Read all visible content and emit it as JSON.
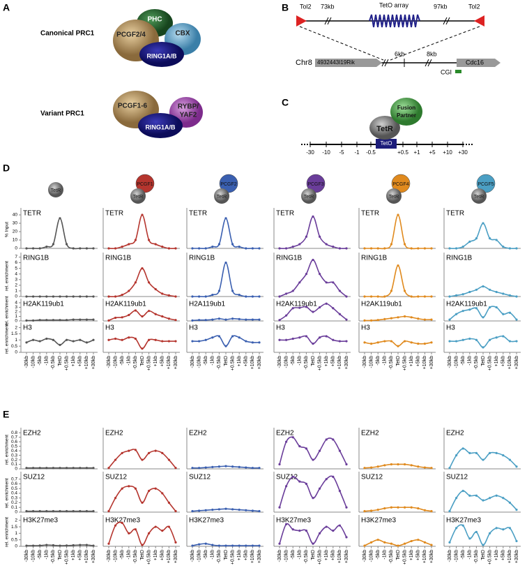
{
  "panel_labels": [
    "A",
    "B",
    "C",
    "D",
    "E"
  ],
  "panel_a": {
    "canonical": "Canonical PRC1",
    "variant": "Variant PRC1",
    "pcgf24": "PCGF2/4",
    "phc": "PHC",
    "cbx": "CBX",
    "ring1": "RING1A/B",
    "pcgf16": "PCGF1-6",
    "rybp1": "RYBP/",
    "rybp2": "YAF2",
    "ring2": "RING1A/B"
  },
  "panel_b": {
    "tol2_left": "Tol2",
    "kb73": "73kb",
    "teto_array": "TetO array",
    "kb97": "97kb",
    "tol2_right": "Tol2",
    "chr8": "Chr8",
    "gene_left": "4932443I19Rik",
    "kb6": "6kb",
    "kb8": "8kb",
    "gene_right": "Cdc16",
    "cgi": "CGI"
  },
  "panel_c": {
    "fusion1": "Fusion",
    "fusion2": "Partner",
    "tetr": "TetR",
    "teto": "TetO",
    "ticks": [
      "-30",
      "-10",
      "-5",
      "-1",
      "-0.5",
      "+0.5",
      "+1",
      "+5",
      "+10",
      "+30"
    ]
  },
  "panel_d": {
    "constructs": [
      {
        "tetr": "TetR"
      },
      {
        "tetr": "TetR",
        "fusion": "PCGF1"
      },
      {
        "tetr": "TetR",
        "fusion": "PCGF2"
      },
      {
        "tetr": "TetR",
        "fusion": "PCGF3"
      },
      {
        "tetr": "TetR",
        "fusion": "PCGF4"
      },
      {
        "tetr": "TetR",
        "fusion": "PCGF5"
      }
    ]
  },
  "chart_data": [
    {
      "type": "line",
      "title": "TETR",
      "color": "#555555",
      "ylim": [
        0,
        45
      ],
      "y_label": "% Input",
      "yticks": [
        0,
        10,
        20,
        30,
        40
      ],
      "values": [
        0,
        0,
        0,
        2,
        5,
        36,
        5,
        0,
        0,
        0,
        0
      ]
    },
    {
      "type": "line",
      "title": "TETR",
      "color": "#b5352e",
      "ylim": [
        0,
        45
      ],
      "values": [
        0,
        0,
        2,
        5,
        10,
        40,
        10,
        5,
        2,
        0,
        0
      ]
    },
    {
      "type": "line",
      "title": "TETR",
      "color": "#3a5fb0",
      "ylim": [
        0,
        45
      ],
      "values": [
        0,
        0,
        0,
        2,
        5,
        36,
        5,
        2,
        0,
        0,
        0
      ]
    },
    {
      "type": "line",
      "title": "TETR",
      "color": "#6a3d9a",
      "ylim": [
        0,
        45
      ],
      "values": [
        0,
        0,
        2,
        5,
        14,
        38,
        14,
        5,
        2,
        0,
        0
      ]
    },
    {
      "type": "line",
      "title": "TETR",
      "color": "#e08a1e",
      "ylim": [
        0,
        45
      ],
      "values": [
        0,
        0,
        0,
        0,
        5,
        40,
        5,
        0,
        0,
        0,
        0
      ]
    },
    {
      "type": "line",
      "title": "TETR",
      "color": "#4b9fc4",
      "ylim": [
        0,
        45
      ],
      "values": [
        0,
        0,
        2,
        8,
        12,
        30,
        12,
        10,
        2,
        0,
        0
      ]
    },
    {
      "type": "line",
      "title": "RING1B",
      "color": "#555555",
      "ylim": [
        0,
        7.3
      ],
      "y_label": "rel. enrichment",
      "yticks": [
        0,
        1,
        2,
        3,
        4,
        5,
        6,
        7
      ],
      "values": [
        0,
        0,
        0,
        0,
        0,
        0,
        0,
        0,
        0,
        0,
        0
      ]
    },
    {
      "type": "line",
      "title": "RING1B",
      "color": "#b5352e",
      "ylim": [
        0,
        7.3
      ],
      "values": [
        0,
        0,
        0.3,
        1,
        2.5,
        5,
        2.5,
        1.3,
        0.5,
        0.2,
        0
      ]
    },
    {
      "type": "line",
      "title": "RING1B",
      "color": "#3a5fb0",
      "ylim": [
        0,
        7.3
      ],
      "values": [
        0,
        0,
        0,
        0.3,
        1,
        6,
        1,
        0.3,
        0,
        0,
        0
      ]
    },
    {
      "type": "line",
      "title": "RING1B",
      "color": "#6a3d9a",
      "ylim": [
        0,
        7.3
      ],
      "values": [
        0,
        0.5,
        1,
        2.5,
        4,
        6.5,
        4,
        2.5,
        2.5,
        1,
        0
      ]
    },
    {
      "type": "line",
      "title": "RING1B",
      "color": "#e08a1e",
      "ylim": [
        0,
        7.3
      ],
      "values": [
        0,
        0,
        0,
        0,
        1,
        5.5,
        1,
        0,
        0,
        0,
        0
      ]
    },
    {
      "type": "line",
      "title": "RING1B",
      "color": "#4b9fc4",
      "ylim": [
        0,
        7.3
      ],
      "values": [
        0,
        0.2,
        0.4,
        0.8,
        1.2,
        1.8,
        1.2,
        0.8,
        0.5,
        0.2,
        0
      ]
    },
    {
      "type": "line",
      "title": "H2AK119ub1",
      "color": "#555555",
      "ylim": [
        0,
        4.3
      ],
      "y_label": "rel. enrichment",
      "yticks": [
        0,
        1,
        2,
        3,
        4
      ],
      "values": [
        0.1,
        0.1,
        0.2,
        0.2,
        0.2,
        0.2,
        0.2,
        0.3,
        0.3,
        0.3,
        0.3
      ]
    },
    {
      "type": "line",
      "title": "H2AK119ub1",
      "color": "#b5352e",
      "ylim": [
        0,
        4.3
      ],
      "values": [
        0.1,
        0.7,
        0.8,
        1.3,
        2.3,
        1.0,
        2.2,
        1.5,
        1.0,
        0.5,
        0.2
      ]
    },
    {
      "type": "line",
      "title": "H2A119ub1",
      "color": "#3a5fb0",
      "ylim": [
        0,
        4.3
      ],
      "values": [
        0.1,
        0.2,
        0.2,
        0.3,
        0.5,
        0.3,
        0.5,
        0.4,
        0.3,
        0.3,
        0.3
      ]
    },
    {
      "type": "line",
      "title": "H2AK119ub1",
      "color": "#6a3d9a",
      "ylim": [
        0,
        4.3
      ],
      "values": [
        0.2,
        1.2,
        2.8,
        2.9,
        3.1,
        2.0,
        3.0,
        3.8,
        2.8,
        1.5,
        0.3
      ]
    },
    {
      "type": "line",
      "title": "H2AK119ub1",
      "color": "#e08a1e",
      "ylim": [
        0,
        4.3
      ],
      "values": [
        0.1,
        0.1,
        0.2,
        0.4,
        0.6,
        0.8,
        1.0,
        0.8,
        0.5,
        0.3,
        0.3
      ]
    },
    {
      "type": "line",
      "title": "H2AK119ub1",
      "color": "#4b9fc4",
      "ylim": [
        0,
        4.3
      ],
      "values": [
        0.3,
        1.5,
        2.2,
        2.5,
        2.8,
        0.8,
        3.0,
        3.0,
        1.5,
        1.8,
        0.3
      ]
    },
    {
      "type": "line",
      "title": "H3",
      "color": "#555555",
      "ylim": [
        0,
        2.2
      ],
      "y_label": "rel. enrichment",
      "yticks": [
        0,
        0.5,
        1,
        1.5,
        2
      ],
      "categories": [
        "-30kb",
        "-10kb",
        "-5kb",
        "-1kb",
        "-0.5kb",
        "TetO",
        "+0.5kb",
        "+1kb",
        "+5kb",
        "+10kb",
        "+30kb"
      ],
      "values": [
        0.8,
        1.0,
        0.9,
        1.1,
        1.0,
        0.6,
        1.0,
        0.9,
        1.0,
        0.8,
        1.0
      ]
    },
    {
      "type": "line",
      "title": "H3",
      "color": "#b5352e",
      "ylim": [
        0,
        2.2
      ],
      "categories": [
        "-30kb",
        "-10kb",
        "-5kb",
        "-1kb",
        "-0.5kb",
        "TetO",
        "+0.5kb",
        "+1kb",
        "+5kb",
        "+10kb",
        "+30kb"
      ],
      "values": [
        1.0,
        1.1,
        1.0,
        1.2,
        1.1,
        0.3,
        1.0,
        1.0,
        0.9,
        0.9,
        0.9
      ]
    },
    {
      "type": "line",
      "title": "H3",
      "color": "#3a5fb0",
      "ylim": [
        0,
        2.2
      ],
      "categories": [
        "-30kb",
        "-10kb",
        "-5kb",
        "-1kb",
        "-0.5kb",
        "TetO",
        "+0.5kb",
        "+1kb",
        "+5kb",
        "+10kb",
        "+30kb"
      ],
      "values": [
        0.9,
        0.9,
        1.0,
        1.2,
        1.3,
        0.5,
        1.3,
        1.2,
        0.9,
        0.8,
        0.8
      ]
    },
    {
      "type": "line",
      "title": "H3",
      "color": "#6a3d9a",
      "ylim": [
        0,
        2.2
      ],
      "categories": [
        "-30kb",
        "-10kb",
        "-5kb",
        "-1kb",
        "-0.5kb",
        "TetO",
        "+0.5kb",
        "+1kb",
        "+5kb",
        "+10kb",
        "+30kb"
      ],
      "values": [
        1.0,
        1.0,
        1.1,
        1.2,
        1.3,
        0.7,
        1.2,
        1.3,
        1.0,
        0.9,
        0.9
      ]
    },
    {
      "type": "line",
      "title": "H3",
      "color": "#e08a1e",
      "ylim": [
        0,
        2.2
      ],
      "categories": [
        "-30kb",
        "-10kb",
        "-5kb",
        "-1kb",
        "-0.5kb",
        "TetO",
        "+0.5kb",
        "+1kb",
        "+5kb",
        "+10kb",
        "+30kb"
      ],
      "values": [
        0.8,
        0.7,
        0.8,
        0.9,
        0.9,
        0.5,
        0.9,
        0.8,
        0.7,
        0.7,
        0.8
      ]
    },
    {
      "type": "line",
      "title": "H3",
      "color": "#4b9fc4",
      "ylim": [
        0,
        2.2
      ],
      "categories": [
        "-30kb",
        "-10kb",
        "-5kb",
        "-1kb",
        "-0.5kb",
        "TetO",
        "+0.5kb",
        "+1kb",
        "+5kb",
        "+10kb",
        "+30kb"
      ],
      "values": [
        0.9,
        0.9,
        1.0,
        1.1,
        1.0,
        0.4,
        1.0,
        1.2,
        1.3,
        0.9,
        0.9
      ]
    },
    {
      "type": "line",
      "title": "EZH2",
      "color": "#555555",
      "ylim": [
        0,
        0.85
      ],
      "y_label": "rel. enrichment",
      "yticks": [
        0,
        0.1,
        0.2,
        0.3,
        0.4,
        0.5,
        0.6,
        0.7,
        0.8
      ],
      "values": [
        0.02,
        0.02,
        0.02,
        0.02,
        0.02,
        0.02,
        0.02,
        0.02,
        0.02,
        0.02,
        0.02
      ]
    },
    {
      "type": "line",
      "title": "EZH2",
      "color": "#b5352e",
      "ylim": [
        0,
        0.85
      ],
      "values": [
        0.02,
        0.2,
        0.35,
        0.4,
        0.42,
        0.2,
        0.35,
        0.4,
        0.35,
        0.2,
        0.02
      ]
    },
    {
      "type": "line",
      "title": "EZH2",
      "color": "#3a5fb0",
      "ylim": [
        0,
        0.85
      ],
      "values": [
        0.02,
        0.02,
        0.03,
        0.04,
        0.05,
        0.06,
        0.05,
        0.04,
        0.03,
        0.02,
        0.02
      ]
    },
    {
      "type": "line",
      "title": "EZH2",
      "color": "#6a3d9a",
      "ylim": [
        0,
        0.85
      ],
      "values": [
        0.1,
        0.6,
        0.7,
        0.5,
        0.45,
        0.2,
        0.4,
        0.65,
        0.65,
        0.4,
        0.1
      ]
    },
    {
      "type": "line",
      "title": "EZH2",
      "color": "#e08a1e",
      "ylim": [
        0,
        0.85
      ],
      "values": [
        0.02,
        0.03,
        0.05,
        0.08,
        0.1,
        0.1,
        0.1,
        0.08,
        0.05,
        0.03,
        0.02
      ]
    },
    {
      "type": "line",
      "title": "EZH2",
      "color": "#4b9fc4",
      "ylim": [
        0,
        0.85
      ],
      "values": [
        0.02,
        0.3,
        0.45,
        0.35,
        0.35,
        0.2,
        0.35,
        0.35,
        0.3,
        0.2,
        0.05
      ]
    },
    {
      "type": "line",
      "title": "SUZ12",
      "color": "#555555",
      "ylim": [
        0,
        0.8
      ],
      "y_label": "rel. enrichment",
      "yticks": [
        0,
        0.1,
        0.2,
        0.3,
        0.4,
        0.5,
        0.6,
        0.7
      ],
      "values": [
        0.02,
        0.02,
        0.02,
        0.02,
        0.02,
        0.02,
        0.02,
        0.02,
        0.02,
        0.02,
        0.02
      ]
    },
    {
      "type": "line",
      "title": "SUZ12",
      "color": "#b5352e",
      "ylim": [
        0,
        0.8
      ],
      "values": [
        0.02,
        0.3,
        0.5,
        0.55,
        0.5,
        0.2,
        0.45,
        0.5,
        0.4,
        0.2,
        0.02
      ]
    },
    {
      "type": "line",
      "title": "SUZ12",
      "color": "#3a5fb0",
      "ylim": [
        0,
        0.8
      ],
      "values": [
        0.02,
        0.03,
        0.04,
        0.05,
        0.06,
        0.07,
        0.06,
        0.05,
        0.04,
        0.03,
        0.02
      ]
    },
    {
      "type": "line",
      "title": "SUZ12",
      "color": "#6a3d9a",
      "ylim": [
        0,
        0.8
      ],
      "values": [
        0.1,
        0.55,
        0.75,
        0.65,
        0.6,
        0.3,
        0.5,
        0.7,
        0.75,
        0.45,
        0.1
      ]
    },
    {
      "type": "line",
      "title": "SUZ12",
      "color": "#e08a1e",
      "ylim": [
        0,
        0.8
      ],
      "values": [
        0.02,
        0.03,
        0.05,
        0.08,
        0.1,
        0.1,
        0.1,
        0.1,
        0.08,
        0.04,
        0.02
      ]
    },
    {
      "type": "line",
      "title": "SUZ12",
      "color": "#4b9fc4",
      "ylim": [
        0,
        0.8
      ],
      "values": [
        0.02,
        0.3,
        0.45,
        0.35,
        0.35,
        0.25,
        0.3,
        0.35,
        0.3,
        0.2,
        0.05
      ]
    },
    {
      "type": "line",
      "title": "H3K27me3",
      "color": "#555555",
      "ylim": [
        0,
        2.2
      ],
      "y_label": "rel. enrichment",
      "yticks": [
        0,
        0.5,
        1,
        1.5,
        2
      ],
      "categories": [
        "-30kb",
        "-10kb",
        "-5kb",
        "-1kb",
        "-0.5kb",
        "TetO",
        "+0.5kb",
        "+1kb",
        "+5kb",
        "+10kb",
        "+30kb"
      ],
      "values": [
        0.05,
        0.05,
        0.06,
        0.1,
        0.08,
        0.05,
        0.06,
        0.08,
        0.1,
        0.1,
        0.05
      ]
    },
    {
      "type": "line",
      "title": "H3K27me3",
      "color": "#b5352e",
      "ylim": [
        0,
        2.2
      ],
      "categories": [
        "-30kb",
        "-10kb",
        "-5kb",
        "-1kb",
        "-0.5kb",
        "TetO",
        "+0.5kb",
        "+1kb",
        "+5kb",
        "+10kb",
        "+30kb"
      ],
      "values": [
        0.2,
        1.6,
        1.8,
        1.0,
        1.3,
        0.1,
        1.0,
        1.5,
        1.2,
        1.5,
        0.3
      ]
    },
    {
      "type": "line",
      "title": "H3K27me3",
      "color": "#3a5fb0",
      "ylim": [
        0,
        2.2
      ],
      "categories": [
        "-30kb",
        "-10kb",
        "-5kb",
        "-1kb",
        "-0.5kb",
        "TetO",
        "+0.5kb",
        "+1kb",
        "+5kb",
        "+10kb",
        "+30kb"
      ],
      "values": [
        0.05,
        0.15,
        0.2,
        0.1,
        0.05,
        0.05,
        0.05,
        0.05,
        0.05,
        0.05,
        0.05
      ]
    },
    {
      "type": "line",
      "title": "H3K27me3",
      "color": "#6a3d9a",
      "ylim": [
        0,
        2.2
      ],
      "categories": [
        "-30kb",
        "-10kb",
        "-5kb",
        "-1kb",
        "-0.5kb",
        "TetO",
        "+0.5kb",
        "+1kb",
        "+5kb",
        "+10kb",
        "+30kb"
      ],
      "values": [
        0.2,
        1.7,
        1.3,
        1.2,
        1.2,
        0.2,
        1.0,
        1.5,
        1.2,
        1.6,
        0.7
      ]
    },
    {
      "type": "line",
      "title": "H3K27me3",
      "color": "#e08a1e",
      "ylim": [
        0,
        2.2
      ],
      "categories": [
        "-30kb",
        "-10kb",
        "-5kb",
        "-1kb",
        "-0.5kb",
        "TetO",
        "+0.5kb",
        "+1kb",
        "+5kb",
        "+10kb",
        "+30kb"
      ],
      "values": [
        0.05,
        0.3,
        0.5,
        0.3,
        0.2,
        0.05,
        0.2,
        0.4,
        0.5,
        0.3,
        0.1
      ]
    },
    {
      "type": "line",
      "title": "H3K27me3",
      "color": "#4b9fc4",
      "ylim": [
        0,
        2.2
      ],
      "categories": [
        "-30kb",
        "-10kb",
        "-5kb",
        "-1kb",
        "-0.5kb",
        "TetO",
        "+0.5kb",
        "+1kb",
        "+5kb",
        "+10kb",
        "+30kb"
      ],
      "values": [
        0.3,
        1.4,
        1.6,
        0.6,
        1.1,
        0.1,
        1.0,
        1.4,
        1.3,
        1.4,
        0.4
      ]
    }
  ]
}
